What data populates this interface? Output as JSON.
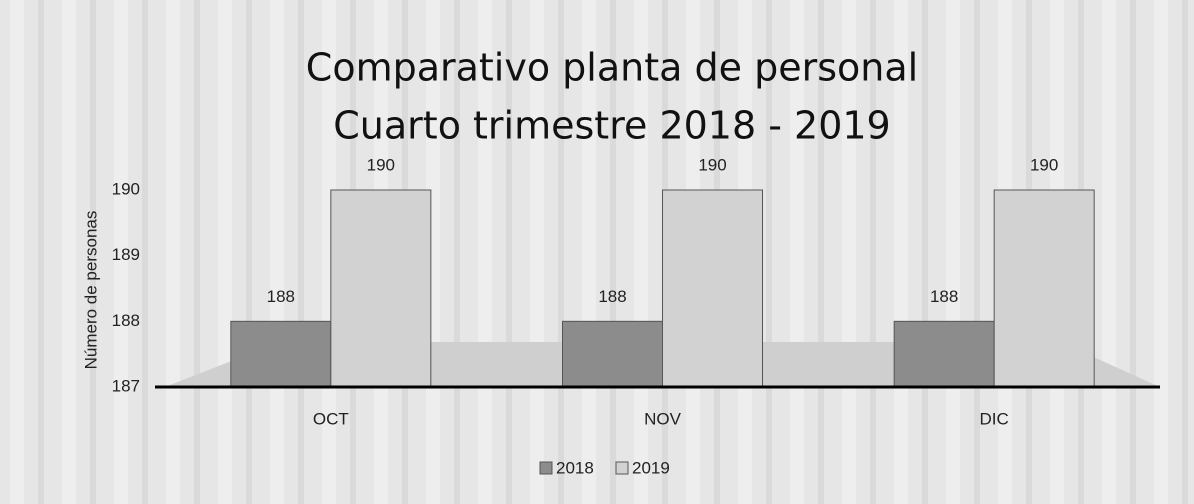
{
  "chart_data": {
    "type": "bar",
    "title": [
      "Comparativo planta de personal",
      "Cuarto trimestre 2018 - 2019"
    ],
    "y_label": "Número de personas",
    "categories": [
      "OCT",
      "NOV",
      "DIC"
    ],
    "series": [
      {
        "name": "2018",
        "color": "#8c8c8c",
        "values": [
          188,
          188,
          188
        ]
      },
      {
        "name": "2019",
        "color": "#d2d2d2",
        "values": [
          190,
          190,
          190
        ]
      }
    ],
    "ylim": [
      187,
      190
    ],
    "yticks": [
      187,
      188,
      189,
      190
    ],
    "grid": false
  }
}
